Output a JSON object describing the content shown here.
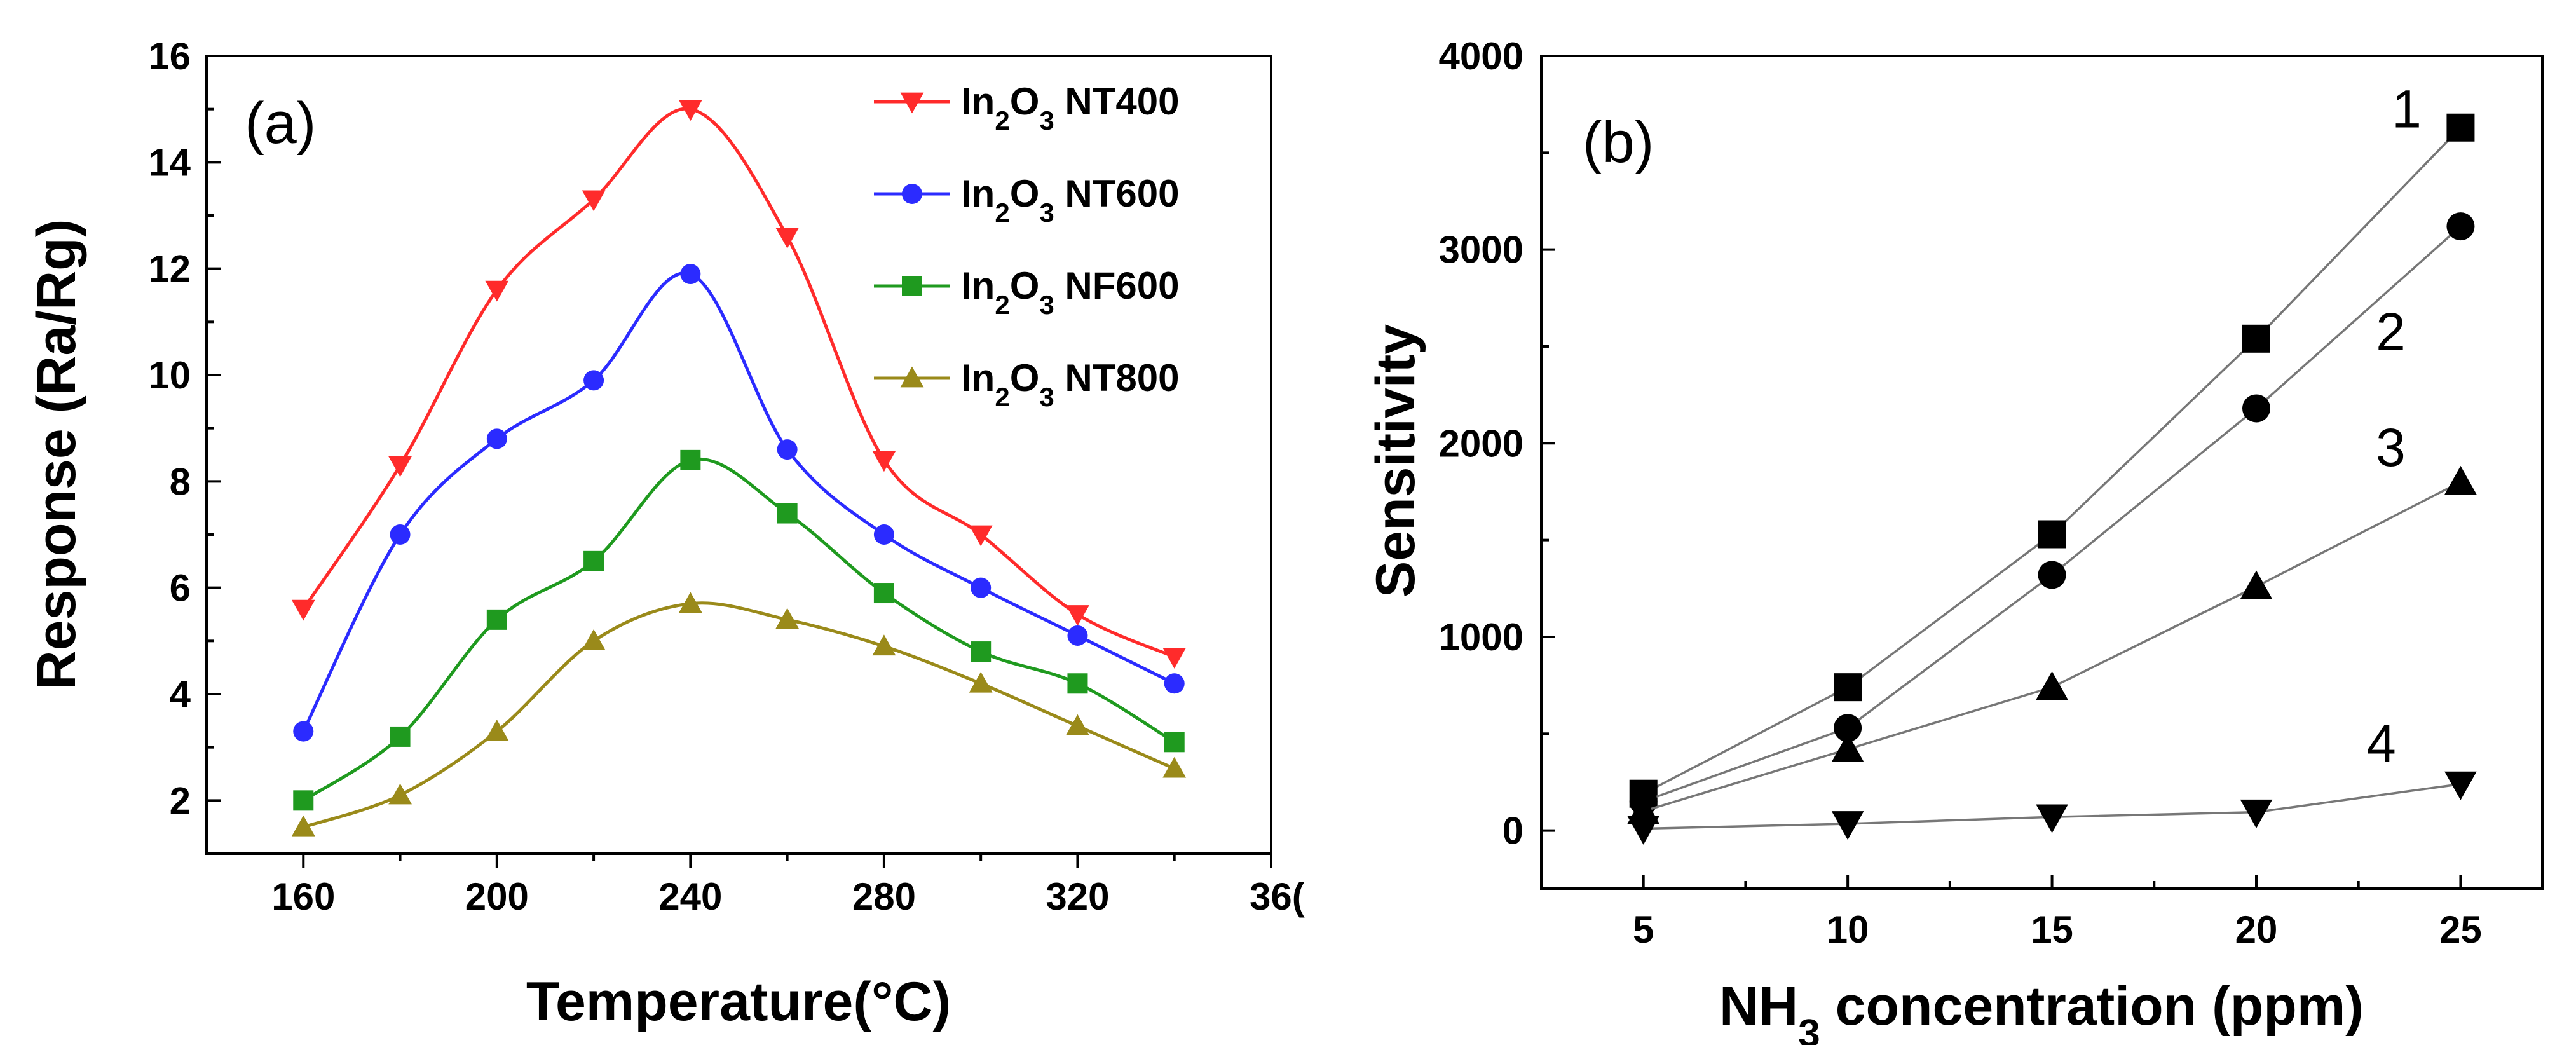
{
  "chart_data": [
    {
      "type": "line",
      "panel_label": "(a)",
      "xlabel": "Temperature(°C)",
      "ylabel": "Response (Ra/Rg)",
      "xlim": [
        140,
        360
      ],
      "ylim": [
        1,
        16
      ],
      "xticks": [
        160,
        200,
        240,
        280,
        320
      ],
      "xticks_extra_label": "36(",
      "yticks": [
        2,
        4,
        6,
        8,
        10,
        12,
        14,
        16
      ],
      "legend_position": "top-right",
      "x": [
        160,
        180,
        200,
        220,
        240,
        260,
        280,
        300,
        320,
        340
      ],
      "series": [
        {
          "name": "In2O3 NT400",
          "label_main": "In",
          "label_sub": "2",
          "label_o": "O",
          "label_sub2": "3",
          "label_rest": " NT400",
          "color": "#ff2b2b",
          "marker": "triangle-down",
          "values": [
            5.6,
            8.3,
            11.6,
            13.3,
            15.0,
            12.6,
            8.4,
            7.0,
            5.5,
            4.7
          ]
        },
        {
          "name": "In2O3 NT600",
          "label_main": "In",
          "label_sub": "2",
          "label_o": "O",
          "label_sub2": "3",
          "label_rest": " NT600",
          "color": "#2b2bff",
          "marker": "circle",
          "values": [
            3.3,
            7.0,
            8.8,
            9.9,
            11.9,
            8.6,
            7.0,
            6.0,
            5.1,
            4.2
          ]
        },
        {
          "name": "In2O3 NF600",
          "label_main": "In",
          "label_sub": "2",
          "label_o": "O",
          "label_sub2": "3",
          "label_rest": " NF600",
          "color": "#1f9a1f",
          "marker": "square",
          "values": [
            2.0,
            3.2,
            5.4,
            6.5,
            8.4,
            7.4,
            5.9,
            4.8,
            4.2,
            3.1
          ]
        },
        {
          "name": "In2O3 NT800",
          "label_main": "In",
          "label_sub": "2",
          "label_o": "O",
          "label_sub2": "3",
          "label_rest": " NT800",
          "color": "#9a8a1a",
          "marker": "triangle-up",
          "values": [
            1.5,
            2.1,
            3.3,
            5.0,
            5.7,
            5.4,
            4.9,
            4.2,
            3.4,
            2.6
          ]
        }
      ]
    },
    {
      "type": "line",
      "panel_label": "(b)",
      "xlabel_main": "NH",
      "xlabel_sub": "3",
      "xlabel_rest": " concentration (ppm)",
      "ylabel": "Sensitivity",
      "xlim": [
        2.5,
        27.0
      ],
      "ylim": [
        -300,
        4000
      ],
      "xticks": [
        5,
        10,
        15,
        20,
        25
      ],
      "yticks": [
        0,
        1000,
        2000,
        3000,
        4000
      ],
      "x": [
        5,
        10,
        15,
        20,
        25
      ],
      "series": [
        {
          "name": "1",
          "marker": "square",
          "values": [
            190,
            740,
            1530,
            2540,
            3630
          ]
        },
        {
          "name": "2",
          "marker": "circle",
          "values": [
            150,
            530,
            1320,
            2180,
            3120
          ]
        },
        {
          "name": "3",
          "marker": "triangle-up",
          "values": [
            100,
            420,
            740,
            1260,
            1800
          ]
        },
        {
          "name": "4",
          "marker": "triangle-down",
          "values": [
            10,
            35,
            70,
            95,
            240
          ]
        }
      ]
    }
  ]
}
